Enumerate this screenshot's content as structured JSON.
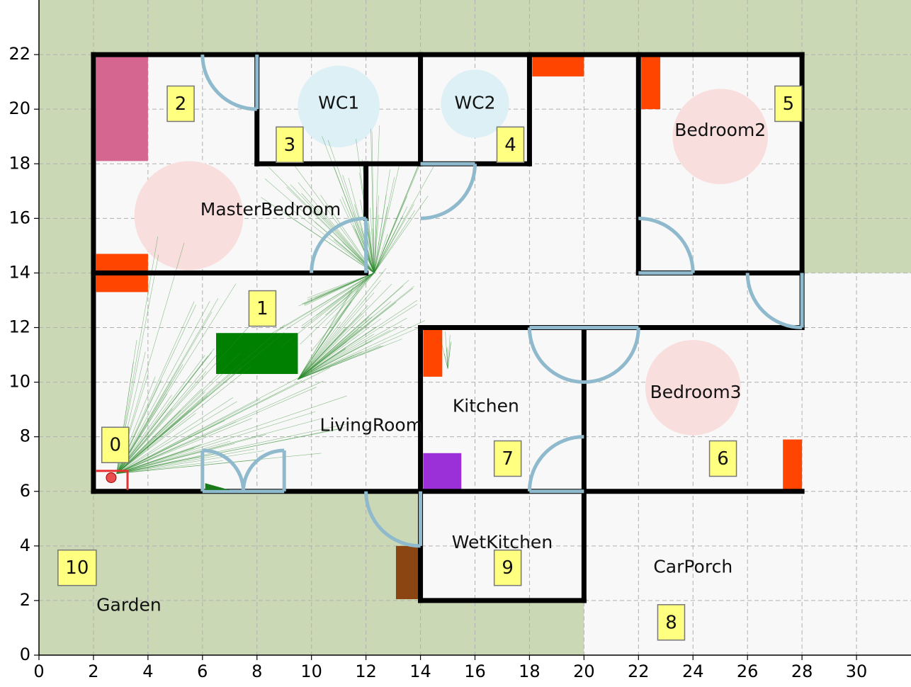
{
  "axes": {
    "xlim": [
      0,
      32
    ],
    "ylim": [
      0,
      24
    ],
    "xticks": [
      0,
      2,
      4,
      6,
      8,
      10,
      12,
      14,
      16,
      18,
      20,
      22,
      24,
      26,
      28,
      30
    ],
    "yticks": [
      0,
      2,
      4,
      6,
      8,
      10,
      12,
      14,
      16,
      18,
      20,
      22
    ],
    "grid": true
  },
  "colors": {
    "outdoor": "#cbd8b5",
    "indoor": "#f8f8f8",
    "wall": "#000000",
    "door": "#8fb9cc",
    "wardrobe": "#ff4500",
    "bed_circle": "#f9dede",
    "wc_circle": "#dcf0f5",
    "node_fill": "#ffff80",
    "robot": "#e83030",
    "ray": "#2d8a2d"
  },
  "rooms": [
    {
      "name": "MasterBedroom",
      "x": 8.5,
      "y": 16.3
    },
    {
      "name": "WC1",
      "x": 11.0,
      "y": 20.2
    },
    {
      "name": "WC2",
      "x": 16.0,
      "y": 20.2
    },
    {
      "name": "Bedroom2",
      "x": 25.0,
      "y": 19.2
    },
    {
      "name": "LivingRoom",
      "x": 12.2,
      "y": 8.4
    },
    {
      "name": "Kitchen",
      "x": 16.4,
      "y": 9.1
    },
    {
      "name": "Bedroom3",
      "x": 24.1,
      "y": 9.6
    },
    {
      "name": "WetKitchen",
      "x": 17.0,
      "y": 4.1
    },
    {
      "name": "CarPorch",
      "x": 24.0,
      "y": 3.2
    },
    {
      "name": "Garden",
      "x": 3.3,
      "y": 1.8
    }
  ],
  "nodes": [
    {
      "id": "0",
      "x": 2.8,
      "y": 7.7
    },
    {
      "id": "1",
      "x": 8.2,
      "y": 12.7
    },
    {
      "id": "2",
      "x": 5.2,
      "y": 20.2
    },
    {
      "id": "3",
      "x": 9.2,
      "y": 18.7
    },
    {
      "id": "4",
      "x": 17.3,
      "y": 18.7
    },
    {
      "id": "5",
      "x": 27.5,
      "y": 20.2
    },
    {
      "id": "6",
      "x": 25.1,
      "y": 7.2
    },
    {
      "id": "7",
      "x": 17.2,
      "y": 7.2
    },
    {
      "id": "8",
      "x": 23.2,
      "y": 1.2
    },
    {
      "id": "9",
      "x": 17.2,
      "y": 3.2
    },
    {
      "id": "10",
      "x": 1.4,
      "y": 3.2
    }
  ],
  "robot": {
    "x": 2.65,
    "y": 6.5
  },
  "target": {
    "x": 8.95,
    "y": 18.55
  }
}
